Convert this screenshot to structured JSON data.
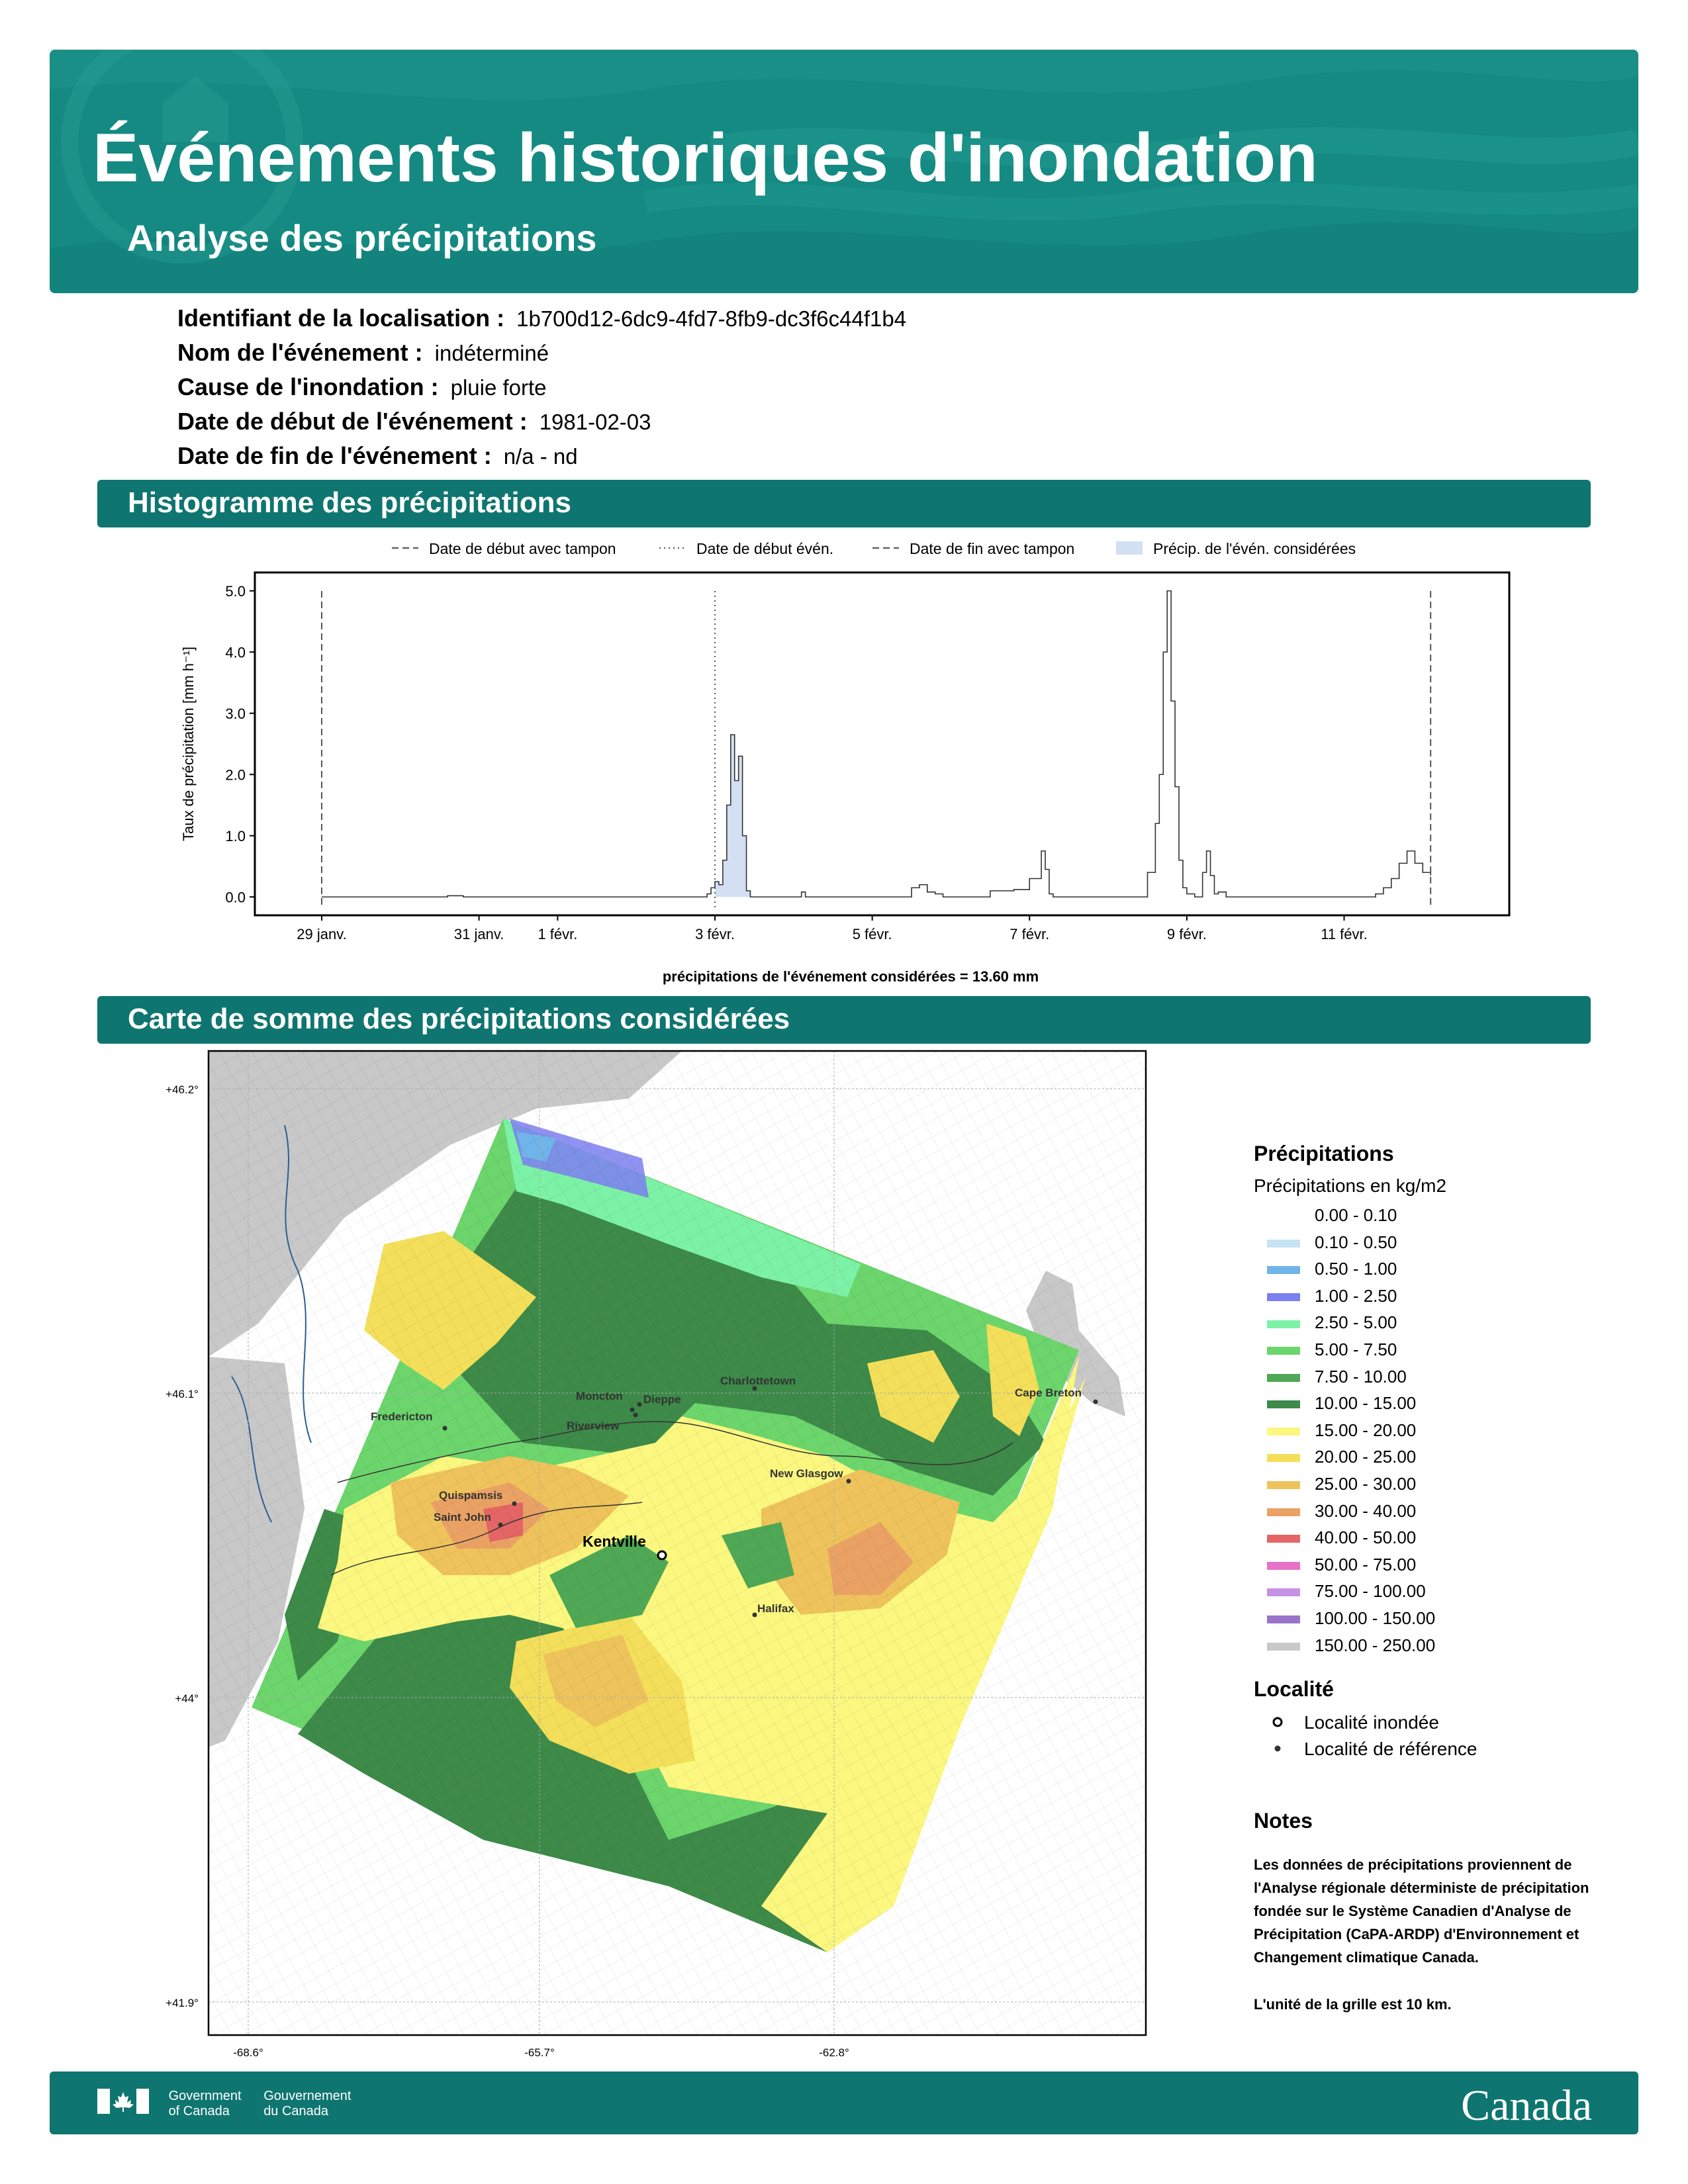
{
  "header": {
    "title": "Événements historiques d'inondation",
    "subtitle": "Analyse des précipitations"
  },
  "info": [
    {
      "label": "Identifiant de la localisation :",
      "value": "1b700d12-6dc9-4fd7-8fb9-dc3f6c44f1b4"
    },
    {
      "label": "Nom de l'événement :",
      "value": "indéterminé"
    },
    {
      "label": "Cause de l'inondation :",
      "value": "pluie forte"
    },
    {
      "label": "Date de début de l'événement :",
      "value": "1981-02-03"
    },
    {
      "label": "Date de fin de l'événement :",
      "value": "n/a - nd"
    }
  ],
  "sections": {
    "histogram": "Histogramme des précipitations",
    "map": "Carte de somme des précipitations considérées"
  },
  "chart_data": {
    "type": "line",
    "ylabel": "Taux de précipitation [mm h⁻¹]",
    "xlabel": "précipitations de l'événement considérées = 13.60 mm",
    "ylim": [
      -0.3,
      5.3
    ],
    "yticks": [
      "0.0",
      "1.0",
      "2.0",
      "3.0",
      "4.0",
      "5.0"
    ],
    "xticks": [
      {
        "day": 0,
        "label": "29 janv."
      },
      {
        "day": 2,
        "label": "31 janv."
      },
      {
        "day": 3,
        "label": "1 févr."
      },
      {
        "day": 5,
        "label": "3 févr."
      },
      {
        "day": 7,
        "label": "5 févr."
      },
      {
        "day": 9,
        "label": "7 févr."
      },
      {
        "day": 11,
        "label": "9 févr."
      },
      {
        "day": 13,
        "label": "11 févr."
      }
    ],
    "legend": [
      "Date de début avec tampon",
      "Date de début évén.",
      "Date de fin avec tampon",
      "Précip. de l'évén. considérées"
    ],
    "buffer_start_day": 0,
    "event_start_day": 5,
    "buffer_end_day": 14.1,
    "event_window": [
      5,
      5.5
    ],
    "series": [
      {
        "x": [
          0,
          1.5,
          1.6,
          1.8,
          4.8,
          4.9,
          4.95,
          5.0,
          5.05,
          5.1,
          5.15,
          5.2,
          5.25,
          5.3,
          5.35,
          5.4,
          5.45,
          5.5,
          6.1,
          6.15,
          7.5,
          7.6,
          7.7,
          7.8,
          7.9,
          8.5,
          8.8,
          9.0,
          9.15,
          9.2,
          9.25,
          9.3,
          9.35,
          9.5,
          10.5,
          10.6,
          10.65,
          10.7,
          10.75,
          10.8,
          10.85,
          10.9,
          10.95,
          11.0,
          11.1,
          11.2,
          11.25,
          11.3,
          11.35,
          11.4,
          11.5,
          12.0,
          13.4,
          13.5,
          13.6,
          13.7,
          13.8,
          13.9,
          14.0,
          14.1
        ],
        "y": [
          0,
          0,
          0.02,
          0,
          0,
          0.05,
          0.15,
          0.25,
          0.2,
          0.6,
          1.5,
          2.65,
          1.9,
          2.3,
          1.0,
          0.1,
          0,
          0,
          0.08,
          0,
          0.15,
          0.2,
          0.08,
          0.05,
          0,
          0.1,
          0.12,
          0.3,
          0.75,
          0.45,
          0.05,
          0,
          0,
          0,
          0.4,
          1.2,
          2.0,
          4.0,
          5.0,
          3.2,
          1.8,
          0.6,
          0.15,
          0.05,
          0,
          0.4,
          0.75,
          0.35,
          0.05,
          0.08,
          0,
          0,
          0.05,
          0.15,
          0.3,
          0.55,
          0.75,
          0.55,
          0.4,
          0.35
        ]
      }
    ]
  },
  "map": {
    "lat_labels": [
      "+46.2°",
      "+46.1°",
      "+44°",
      "+41.9°"
    ],
    "lon_labels": [
      "-68.6°",
      "-65.7°",
      "-62.8°"
    ],
    "places": [
      {
        "name": "Fredericton",
        "type": "reference"
      },
      {
        "name": "Moncton",
        "type": "reference"
      },
      {
        "name": "Dieppe",
        "type": "reference"
      },
      {
        "name": "Riverview",
        "type": "reference"
      },
      {
        "name": "Charlottetown",
        "type": "reference"
      },
      {
        "name": "Cape Breton",
        "type": "reference"
      },
      {
        "name": "New Glasgow",
        "type": "reference"
      },
      {
        "name": "Quispamsis",
        "type": "reference"
      },
      {
        "name": "Saint John",
        "type": "reference"
      },
      {
        "name": "Kentville",
        "type": "flooded"
      },
      {
        "name": "Halifax",
        "type": "reference"
      }
    ]
  },
  "legend": {
    "title": "Précipitations",
    "subtitle": "Précipitations en kg/m2",
    "classes": [
      {
        "label": "0.00 - 0.10",
        "color": "#ffffff"
      },
      {
        "label": "0.10 - 0.50",
        "color": "#c6e2f5"
      },
      {
        "label": "0.50 - 1.00",
        "color": "#6fb5ea"
      },
      {
        "label": "1.00 - 2.50",
        "color": "#7c7ff0"
      },
      {
        "label": "2.50 - 5.00",
        "color": "#7cf2a6"
      },
      {
        "label": "5.00 - 7.50",
        "color": "#6cd56c"
      },
      {
        "label": "7.50 - 10.00",
        "color": "#4fa855"
      },
      {
        "label": "10.00 - 15.00",
        "color": "#3d8a49"
      },
      {
        "label": "15.00 - 20.00",
        "color": "#fbf77f"
      },
      {
        "label": "20.00 - 25.00",
        "color": "#f3df5a"
      },
      {
        "label": "25.00 - 30.00",
        "color": "#eec35b"
      },
      {
        "label": "30.00 - 40.00",
        "color": "#eaa264"
      },
      {
        "label": "40.00 - 50.00",
        "color": "#e46565"
      },
      {
        "label": "50.00 - 75.00",
        "color": "#e673c7"
      },
      {
        "label": "75.00 - 100.00",
        "color": "#c592e6"
      },
      {
        "label": "100.00 - 150.00",
        "color": "#9a74c9"
      },
      {
        "label": "150.00 - 250.00",
        "color": "#c9c9c9"
      }
    ],
    "locality_title": "Localité",
    "locality_flooded": "Localité inondée",
    "locality_reference": "Localité de référence",
    "notes_title": "Notes",
    "notes_text": "Les données de précipitations proviennent de l'Analyse régionale déterministe de précipitation fondée sur le Système Canadien d'Analyse de Précipitation (CaPA-ARDP) d'Environnement et Changement climatique Canada.",
    "notes_grid": "L'unité de la grille est 10 km."
  },
  "footer": {
    "gov_en_1": "Government",
    "gov_en_2": "of Canada",
    "gov_fr_1": "Gouvernement",
    "gov_fr_2": "du Canada",
    "wordmark": "Canada"
  }
}
